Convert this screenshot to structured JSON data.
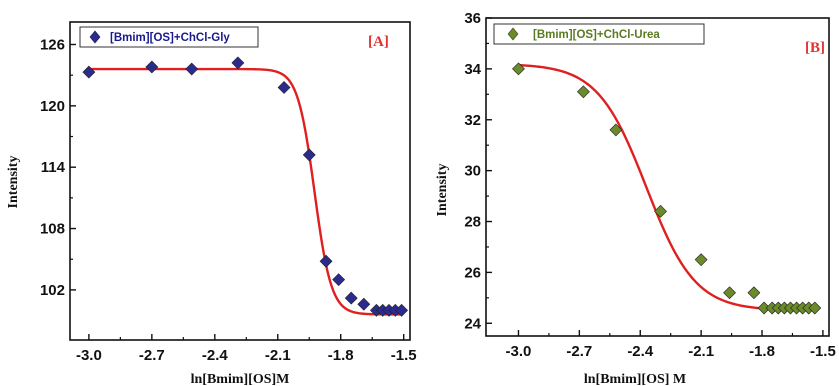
{
  "chart_data": [
    {
      "type": "scatter",
      "panel_label": "[A]",
      "xlabel": "ln[Bmim][OS]M",
      "ylabel": "Intensity",
      "xlim": [
        -3.09,
        -1.47
      ],
      "ylim": [
        97.1,
        128.2
      ],
      "xticks": [
        -3.0,
        -2.7,
        -2.4,
        -2.1,
        -1.8,
        -1.5
      ],
      "xtick_labels": [
        "-3.0",
        "-2.7",
        "-2.4",
        "-2.1",
        "-1.8",
        "-1.5"
      ],
      "yticks": [
        102,
        108,
        114,
        120,
        126
      ],
      "ytick_labels": [
        "102",
        "108",
        "114",
        "120",
        "126"
      ],
      "legend_position": "top-left",
      "colors": {
        "marker": "#2b2b8c",
        "fit": "#e02020",
        "panel_label": "#e03030"
      },
      "series": [
        {
          "name": "[Bmim][OS]+ChCl-Gly",
          "x": [
            -3.0,
            -2.7,
            -2.51,
            -2.29,
            -2.07,
            -1.95,
            -1.87,
            -1.81,
            -1.75,
            -1.69,
            -1.63,
            -1.6,
            -1.57,
            -1.54,
            -1.51
          ],
          "y": [
            123.3,
            123.8,
            123.6,
            124.2,
            121.8,
            115.2,
            104.8,
            103.0,
            101.2,
            100.6,
            100.0,
            100.0,
            100.0,
            100.0,
            100.0
          ]
        }
      ],
      "fit": {
        "type": "sigmoid",
        "top": 123.6,
        "bottom": 99.6,
        "x0": -1.925,
        "dx": 0.04
      }
    },
    {
      "type": "scatter",
      "panel_label": "[B]",
      "xlabel": "ln[Bmim][OS] M",
      "ylabel": "Intensity",
      "xlim": [
        -3.16,
        -1.47
      ],
      "ylim": [
        23.5,
        36.0
      ],
      "xticks": [
        -3.0,
        -2.7,
        -2.4,
        -2.1,
        -1.8,
        -1.5
      ],
      "xtick_labels": [
        "-3.0",
        "-2.7",
        "-2.4",
        "-2.1",
        "-1.8",
        "-1.5"
      ],
      "yticks": [
        24,
        26,
        28,
        30,
        32,
        34,
        36
      ],
      "ytick_labels": [
        "24",
        "26",
        "28",
        "30",
        "32",
        "34",
        "36"
      ],
      "legend_position": "top-left",
      "colors": {
        "marker": "#6b8a2a",
        "fit": "#e02020",
        "panel_label": "#e03030"
      },
      "series": [
        {
          "name": "[Bmim][OS]+ChCl-Urea",
          "x": [
            -3.0,
            -2.68,
            -2.52,
            -2.3,
            -2.1,
            -1.96,
            -1.84,
            -1.79,
            -1.75,
            -1.72,
            -1.69,
            -1.66,
            -1.63,
            -1.6,
            -1.57,
            -1.54
          ],
          "y": [
            34.0,
            33.1,
            31.6,
            28.4,
            26.5,
            25.2,
            25.2,
            24.6,
            24.6,
            24.6,
            24.6,
            24.6,
            24.6,
            24.6,
            24.6,
            24.6
          ]
        }
      ],
      "fit": {
        "type": "sigmoid",
        "top": 34.2,
        "bottom": 24.5,
        "x0": -2.37,
        "dx": 0.12
      }
    }
  ]
}
